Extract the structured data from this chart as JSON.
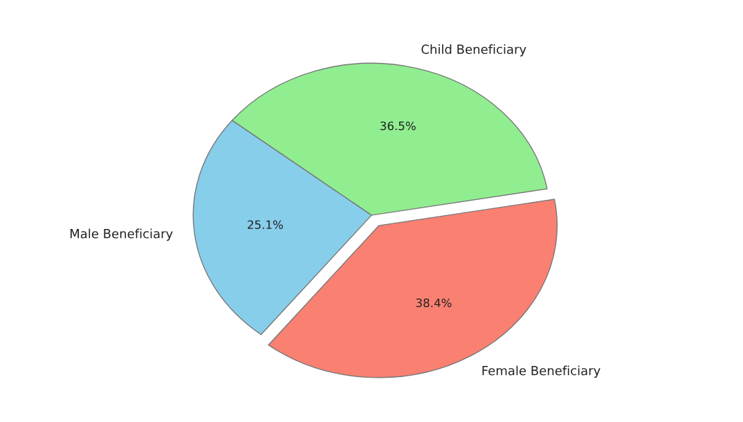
{
  "chart_data": {
    "type": "pie",
    "categories": [
      "Child Beneficiary",
      "Male Beneficiary",
      "Female Beneficiary"
    ],
    "values": [
      36.5,
      25.1,
      38.4
    ],
    "colors": [
      "#90ee90",
      "#87ceeb",
      "#fa8072"
    ],
    "value_labels": [
      "36.5%",
      "25.1%",
      "38.4%"
    ]
  }
}
